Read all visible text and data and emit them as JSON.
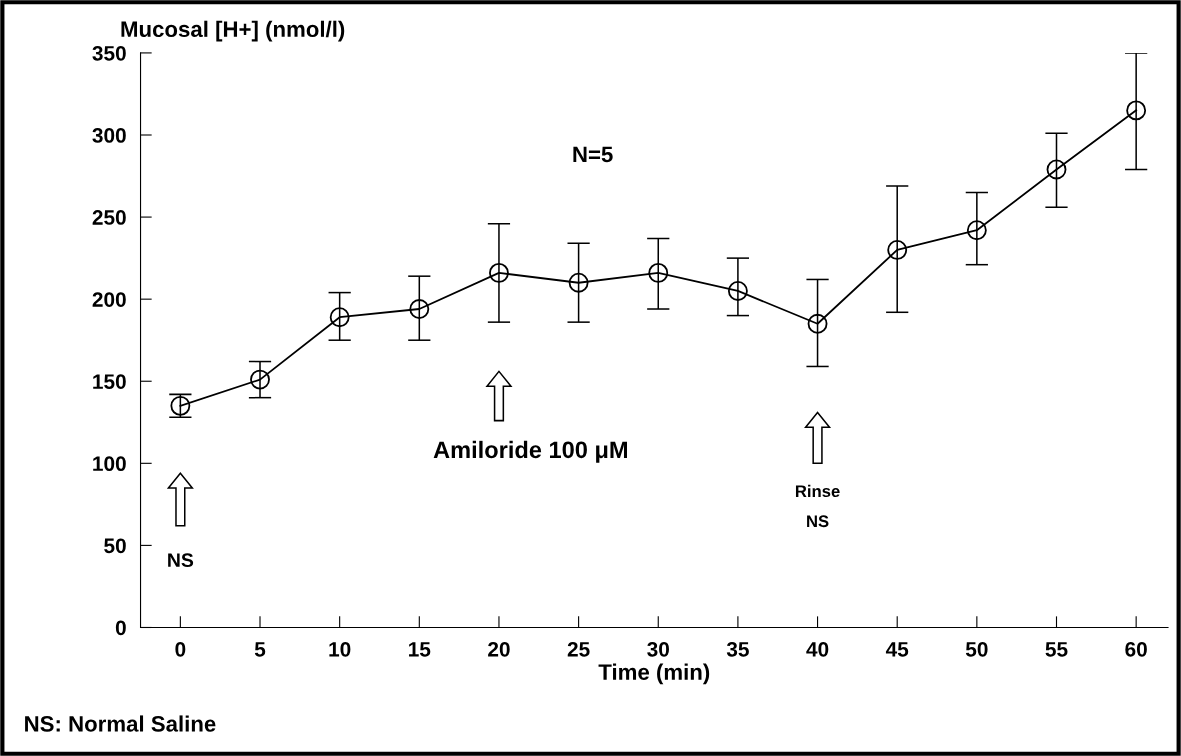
{
  "chart_data": {
    "type": "line",
    "xlabel": "Time (min)",
    "ylabel": "Mucosal [H+] (nmol/l)",
    "x": [
      0,
      5,
      10,
      15,
      20,
      25,
      30,
      35,
      40,
      45,
      50,
      55,
      60
    ],
    "series": [
      {
        "color": "#000000",
        "values": [
          135,
          151,
          189,
          194,
          216,
          210,
          216,
          205,
          185,
          230,
          242,
          279,
          315
        ],
        "errors": [
          [
            128,
            142
          ],
          [
            140,
            162
          ],
          [
            175,
            204
          ],
          [
            175,
            214
          ],
          [
            186,
            246
          ],
          [
            186,
            234
          ],
          [
            194,
            237
          ],
          [
            190,
            225
          ],
          [
            159,
            212
          ],
          [
            192,
            269
          ],
          [
            221,
            265
          ],
          [
            256,
            301
          ],
          [
            279,
            350
          ]
        ]
      }
    ],
    "marker": "circle",
    "line_style": "solid",
    "grid": false,
    "legend": false,
    "xlim": [
      -2.5,
      62
    ],
    "ylim": [
      0,
      350
    ],
    "xticks": [
      0,
      5,
      10,
      15,
      20,
      25,
      30,
      35,
      40,
      45,
      50,
      55,
      60
    ],
    "yticks": [
      0,
      50,
      100,
      150,
      200,
      250,
      300,
      350
    ],
    "annotations": [
      "N=5",
      "NS: Normal Saline",
      "NS",
      "Amiloride 100 μM",
      "Rinse\nNS"
    ]
  }
}
